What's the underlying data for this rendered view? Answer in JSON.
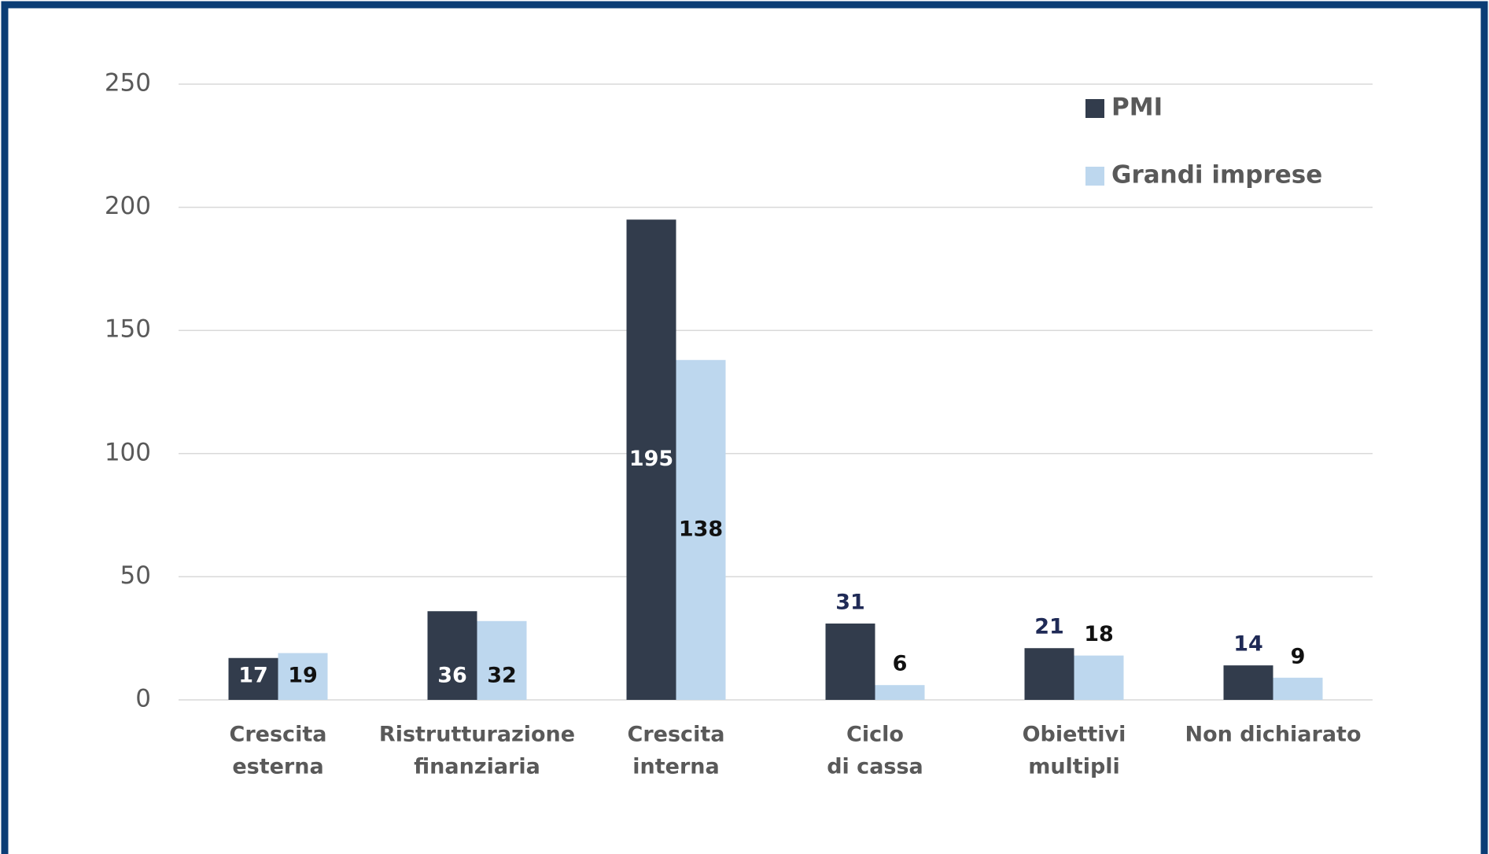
{
  "chart_data": {
    "type": "bar",
    "categories": [
      [
        "Crescita",
        "esterna"
      ],
      [
        "Ristrutturazione",
        "finanziaria"
      ],
      [
        "Crescita",
        "interna"
      ],
      [
        "Ciclo",
        "di cassa"
      ],
      [
        "Obiettivi",
        "multipli"
      ],
      [
        "Non dichiarato"
      ]
    ],
    "series": [
      {
        "name": "PMI",
        "color": "#323c4c",
        "values": [
          17,
          36,
          195,
          31,
          21,
          14
        ]
      },
      {
        "name": "Grandi imprese",
        "color": "#bdd7ee",
        "values": [
          19,
          32,
          138,
          6,
          18,
          9
        ]
      }
    ],
    "ylim": [
      0,
      250
    ],
    "yticks": [
      0,
      50,
      100,
      150,
      200,
      250
    ],
    "grid": true,
    "legend": "top-right"
  }
}
